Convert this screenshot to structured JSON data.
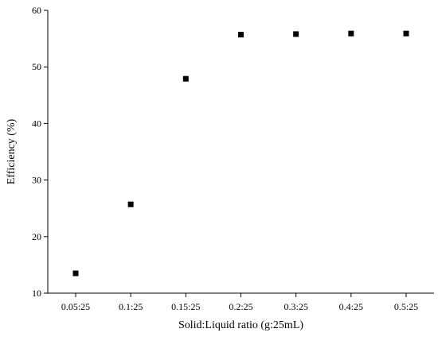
{
  "chart_data": {
    "type": "scatter",
    "title": "",
    "xlabel": "Solid:Liquid ratio (g:25mL)",
    "ylabel": "Efficiency (%)",
    "categories": [
      "0.05:25",
      "0.1:25",
      "0.15:25",
      "0.2:25",
      "0.3:25",
      "0.4:25",
      "0.5:25"
    ],
    "values": [
      13.5,
      25.7,
      47.9,
      55.7,
      55.8,
      55.9,
      55.9
    ],
    "ylim": [
      10,
      60
    ],
    "yticks": [
      10,
      20,
      30,
      40,
      50,
      60
    ],
    "grid": false,
    "marker": "square",
    "point_color": "#000000"
  }
}
